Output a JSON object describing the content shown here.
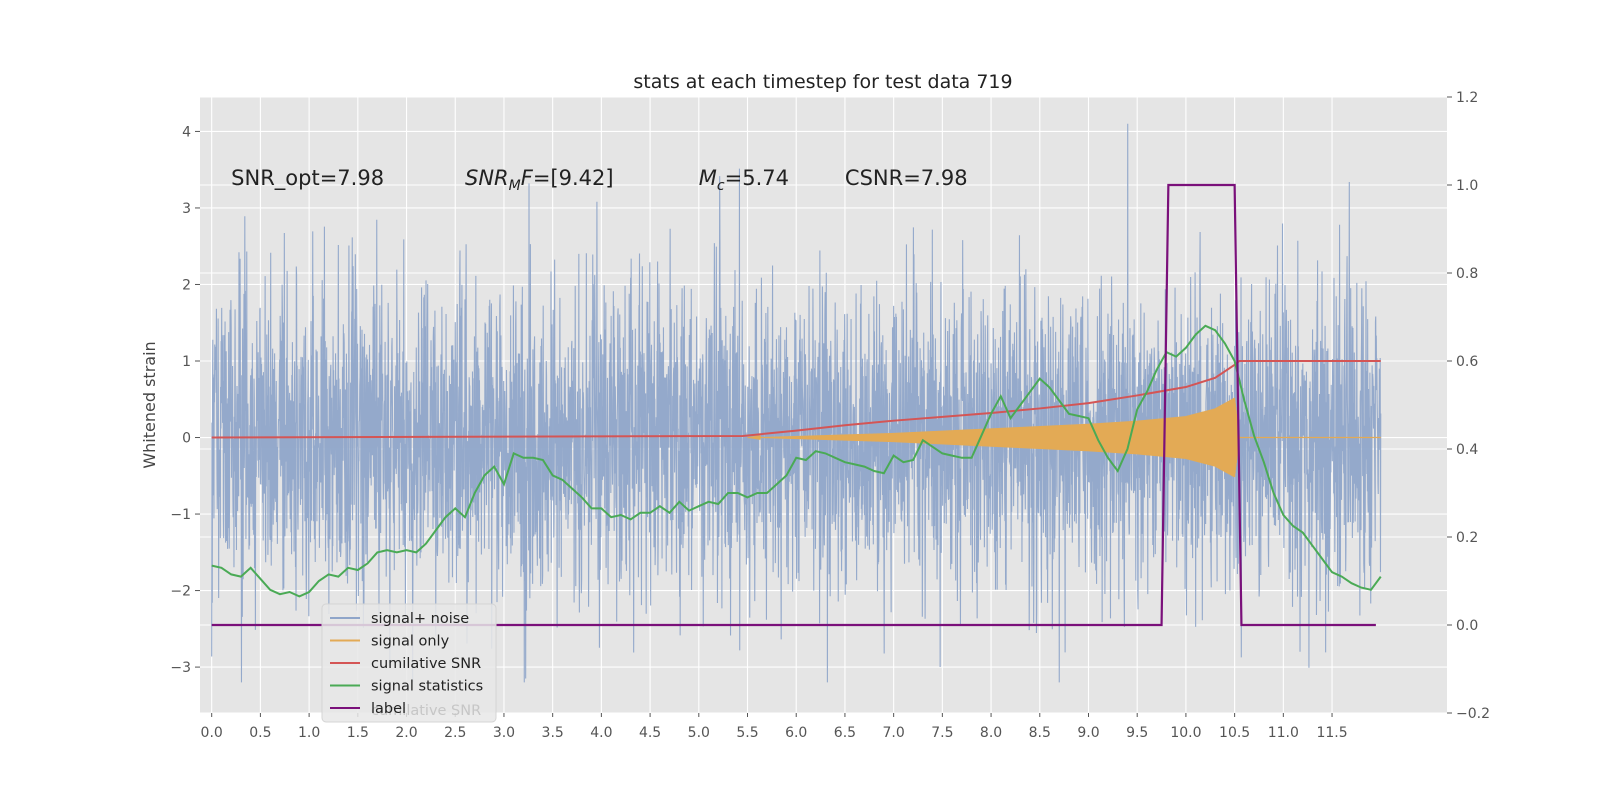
{
  "chart_data": {
    "type": "line",
    "title": "stats at each timestep for test data 719",
    "ylabel": "Whitened strain",
    "xlim": [
      -0.12,
      12.68
    ],
    "ylim": [
      -3.6,
      4.45
    ],
    "y2lim": [
      -0.2,
      1.2
    ],
    "grid": true,
    "legend_position": "lower-left",
    "x_ticks": [
      "0.0",
      "0.5",
      "1.0",
      "1.5",
      "2.0",
      "2.5",
      "3.0",
      "3.5",
      "4.0",
      "4.5",
      "5.0",
      "5.5",
      "6.0",
      "6.5",
      "7.0",
      "7.5",
      "8.0",
      "8.5",
      "9.0",
      "9.5",
      "10.0",
      "10.5",
      "11.0",
      "11.5"
    ],
    "y_ticks": [
      "4",
      "3",
      "2",
      "1",
      "0",
      "−1",
      "−2",
      "−3"
    ],
    "y2_ticks": [
      "1.2",
      "1.0",
      "0.8",
      "0.6",
      "0.4",
      "0.2",
      "0.0",
      "−0.2"
    ],
    "annotations": [
      {
        "prefix": "SNR_opt=7.98",
        "subscript": "",
        "suffix": ""
      },
      {
        "prefix": "SNR",
        "subscript": "M",
        "suffix": "F=[9.42]"
      },
      {
        "prefix": "M",
        "subscript": "c",
        "suffix": "=5.74"
      },
      {
        "prefix": "CSNR=7.98",
        "subscript": "",
        "suffix": ""
      }
    ],
    "series": [
      {
        "name": "signal+ noise",
        "color": "#8fa5c9",
        "axis": "left",
        "x_range": [
          0.0,
          12.0
        ],
        "amplitude_range": [
          -3.2,
          4.1
        ]
      },
      {
        "name": "signal only",
        "color": "#e3aa55",
        "axis": "left",
        "x": [
          5.5,
          6.0,
          7.0,
          8.0,
          9.0,
          9.5,
          10.0,
          10.3,
          10.5,
          10.55,
          12.0
        ],
        "envelope": [
          0.0,
          0.02,
          0.06,
          0.12,
          0.18,
          0.22,
          0.28,
          0.38,
          0.52,
          0.0,
          0.0
        ]
      },
      {
        "name": "cumilative SNR",
        "color": "#d45555",
        "axis": "left",
        "x": [
          0.0,
          5.45,
          6.0,
          6.5,
          7.0,
          7.5,
          8.0,
          8.5,
          9.0,
          9.5,
          10.0,
          10.3,
          10.5,
          10.55,
          12.0
        ],
        "y": [
          0.0,
          0.02,
          0.09,
          0.16,
          0.22,
          0.27,
          0.32,
          0.38,
          0.45,
          0.55,
          0.66,
          0.78,
          0.95,
          1.0,
          1.0
        ]
      },
      {
        "name": "signal statistics",
        "color": "#4aaa55",
        "axis": "right",
        "x": [
          0.0,
          0.1,
          0.2,
          0.3,
          0.4,
          0.5,
          0.6,
          0.7,
          0.8,
          0.9,
          1.0,
          1.1,
          1.2,
          1.3,
          1.4,
          1.5,
          1.6,
          1.7,
          1.8,
          1.9,
          2.0,
          2.1,
          2.2,
          2.3,
          2.4,
          2.5,
          2.6,
          2.7,
          2.8,
          2.9,
          3.0,
          3.1,
          3.2,
          3.3,
          3.4,
          3.5,
          3.6,
          3.7,
          3.8,
          3.9,
          4.0,
          4.1,
          4.2,
          4.3,
          4.4,
          4.5,
          4.6,
          4.7,
          4.8,
          4.9,
          5.0,
          5.1,
          5.2,
          5.3,
          5.4,
          5.5,
          5.6,
          5.7,
          5.8,
          5.9,
          6.0,
          6.1,
          6.2,
          6.3,
          6.4,
          6.5,
          6.6,
          6.7,
          6.8,
          6.9,
          7.0,
          7.1,
          7.2,
          7.3,
          7.4,
          7.5,
          7.6,
          7.7,
          7.8,
          7.9,
          8.0,
          8.1,
          8.2,
          8.3,
          8.4,
          8.5,
          8.6,
          8.7,
          8.8,
          8.9,
          9.0,
          9.1,
          9.2,
          9.3,
          9.4,
          9.5,
          9.6,
          9.7,
          9.8,
          9.9,
          10.0,
          10.1,
          10.2,
          10.3,
          10.4,
          10.5,
          10.6,
          10.7,
          10.8,
          10.9,
          11.0,
          11.1,
          11.2,
          11.3,
          11.4,
          11.5,
          11.6,
          11.7,
          11.8,
          11.9,
          12.0
        ],
        "y": [
          0.135,
          0.13,
          0.115,
          0.11,
          0.13,
          0.105,
          0.08,
          0.07,
          0.075,
          0.065,
          0.075,
          0.1,
          0.115,
          0.11,
          0.13,
          0.125,
          0.14,
          0.165,
          0.17,
          0.165,
          0.17,
          0.165,
          0.185,
          0.215,
          0.245,
          0.265,
          0.245,
          0.3,
          0.34,
          0.36,
          0.32,
          0.39,
          0.38,
          0.38,
          0.375,
          0.34,
          0.33,
          0.31,
          0.29,
          0.265,
          0.265,
          0.245,
          0.25,
          0.24,
          0.255,
          0.255,
          0.27,
          0.255,
          0.28,
          0.26,
          0.27,
          0.28,
          0.275,
          0.3,
          0.3,
          0.29,
          0.3,
          0.3,
          0.32,
          0.34,
          0.38,
          0.375,
          0.395,
          0.39,
          0.38,
          0.37,
          0.365,
          0.36,
          0.35,
          0.345,
          0.385,
          0.37,
          0.375,
          0.42,
          0.405,
          0.39,
          0.385,
          0.38,
          0.38,
          0.43,
          0.48,
          0.52,
          0.47,
          0.5,
          0.53,
          0.56,
          0.54,
          0.51,
          0.48,
          0.475,
          0.47,
          0.42,
          0.38,
          0.35,
          0.4,
          0.49,
          0.53,
          0.58,
          0.62,
          0.61,
          0.63,
          0.66,
          0.68,
          0.67,
          0.64,
          0.6,
          0.51,
          0.43,
          0.37,
          0.3,
          0.25,
          0.225,
          0.21,
          0.18,
          0.15,
          0.12,
          0.11,
          0.095,
          0.085,
          0.08,
          0.11
        ]
      },
      {
        "name": "label",
        "color": "#7a107a",
        "axis": "right",
        "x": [
          0.0,
          9.75,
          9.82,
          10.5,
          10.57,
          11.95
        ],
        "y": [
          0.0,
          0.0,
          1.0,
          1.0,
          0.0,
          0.0
        ]
      }
    ],
    "legend_entries": [
      "signal+ noise",
      "signal only",
      "cumilative SNR",
      "signal statistics",
      "label"
    ],
    "legend_ghost_text": "cumilative SNR"
  }
}
